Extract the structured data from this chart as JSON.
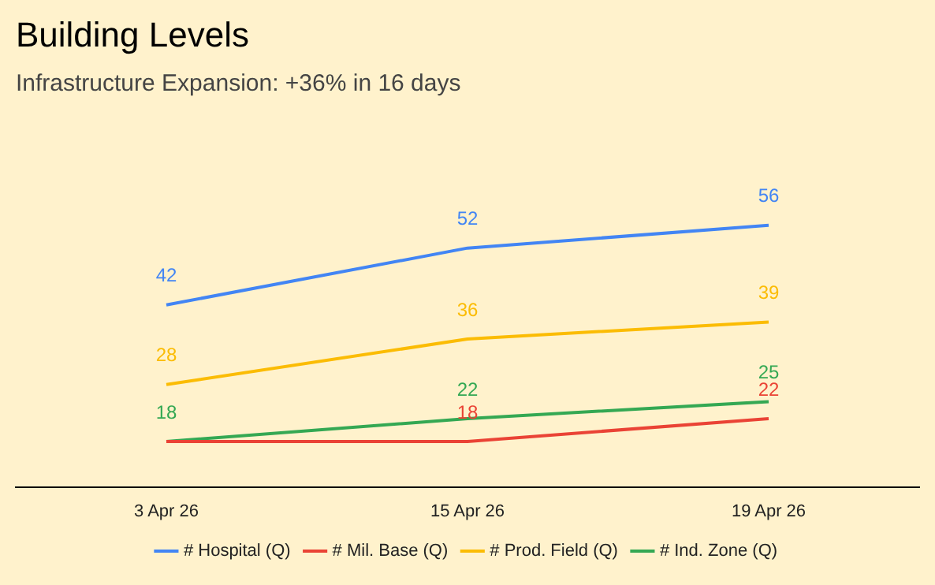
{
  "chart_data": {
    "type": "line",
    "title": "Building Levels",
    "subtitle": "Infrastructure Expansion: +36% in 16 days",
    "categories": [
      "3 Apr 26",
      "15 Apr 26",
      "19 Apr 26"
    ],
    "series": [
      {
        "name": "# Hospital (Q)",
        "color": "#4285f4",
        "values": [
          42,
          52,
          56
        ],
        "value_labels": [
          "42",
          "52",
          "56"
        ]
      },
      {
        "name": "# Mil. Base (Q)",
        "color": "#ea4335",
        "values": [
          18,
          18,
          22
        ],
        "value_labels": [
          null,
          "18",
          "22"
        ]
      },
      {
        "name": "# Prod. Field (Q)",
        "color": "#fbbc04",
        "values": [
          28,
          36,
          39
        ],
        "value_labels": [
          "28",
          "36",
          "39"
        ]
      },
      {
        "name": "# Ind. Zone (Q)",
        "color": "#34a853",
        "values": [
          18,
          22,
          25
        ],
        "value_labels": [
          "18",
          "22",
          "25"
        ]
      }
    ],
    "legend": "bottom",
    "grid": false
  }
}
